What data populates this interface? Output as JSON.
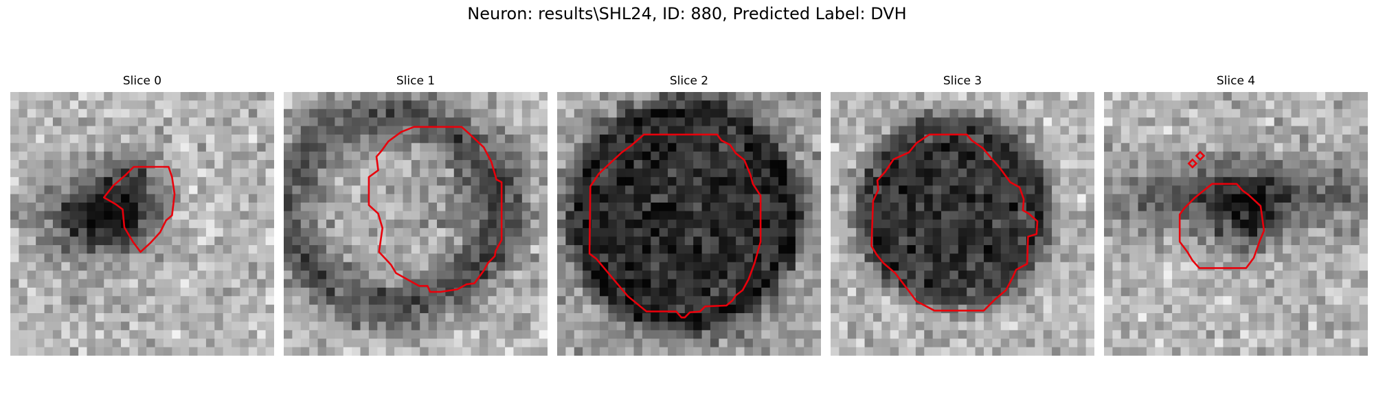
{
  "figure": {
    "title": "Neuron: results\\SHL24, ID: 880, Predicted Label: DVH",
    "colormap": "grayscale",
    "contour_color": "#e8000b"
  },
  "slices": [
    {
      "title": "Slice 0",
      "dark_region": "irregular blob, center-left, darkest near the contour"
    },
    {
      "title": "Slice 1",
      "dark_region": "dark ring surrounding a lighter contoured area"
    },
    {
      "title": "Slice 2",
      "dark_region": "large dark disc filling the contour"
    },
    {
      "title": "Slice 3",
      "dark_region": "dark disc filling the contour"
    },
    {
      "title": "Slice 4",
      "dark_region": "dark band across the middle, small contour below, two tiny diamonds upper-left"
    }
  ]
}
